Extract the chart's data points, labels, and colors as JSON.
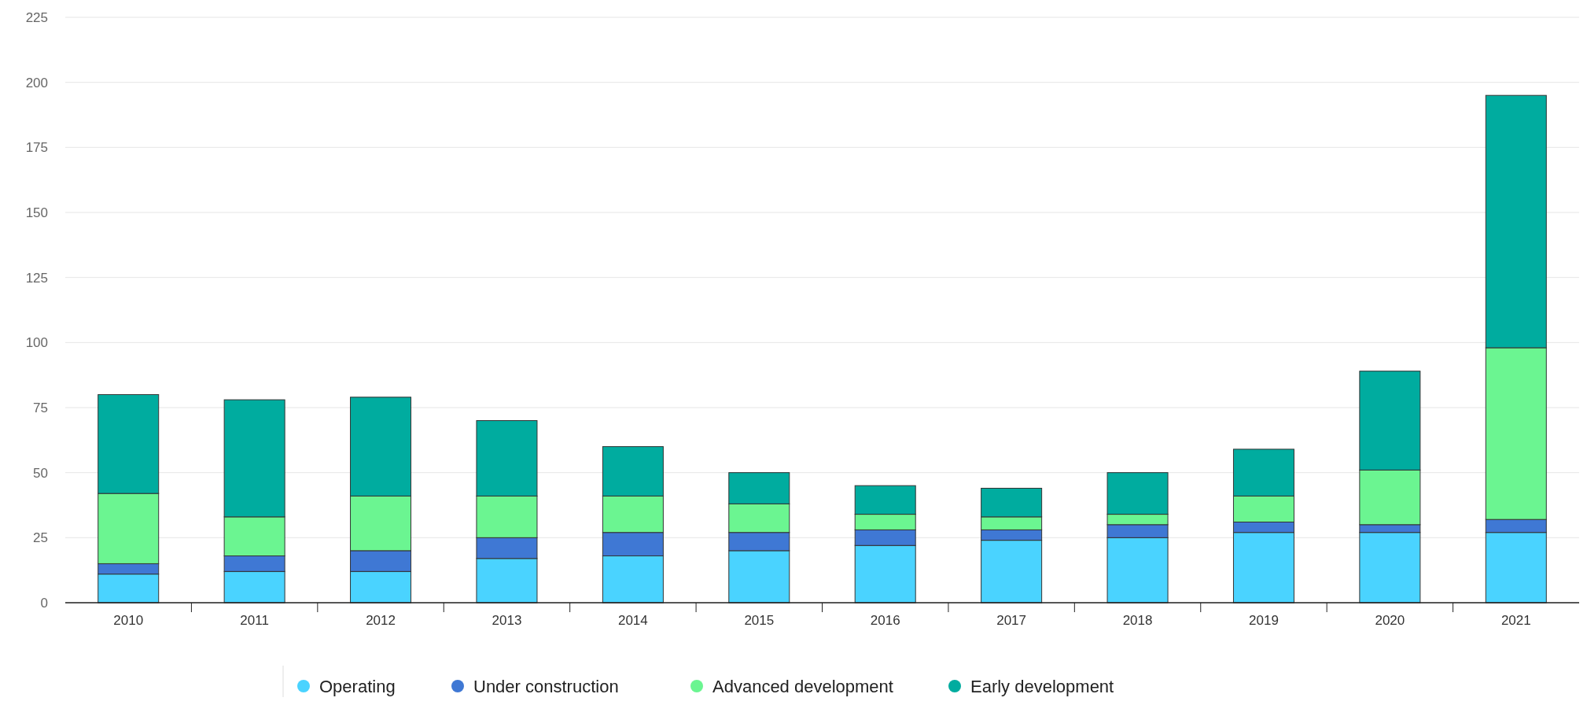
{
  "chart_data": {
    "type": "bar",
    "stacked": true,
    "categories": [
      "2010",
      "2011",
      "2012",
      "2013",
      "2014",
      "2015",
      "2016",
      "2017",
      "2018",
      "2019",
      "2020",
      "2021"
    ],
    "series": [
      {
        "name": "Operating",
        "color": "#4ad3ff",
        "values": [
          11,
          12,
          12,
          17,
          18,
          20,
          22,
          24,
          25,
          27,
          27,
          27
        ]
      },
      {
        "name": "Under construction",
        "color": "#3f78d4",
        "values": [
          4,
          6,
          8,
          8,
          9,
          7,
          6,
          4,
          5,
          4,
          3,
          5
        ]
      },
      {
        "name": "Advanced development",
        "color": "#6bf591",
        "values": [
          27,
          15,
          21,
          16,
          14,
          11,
          6,
          5,
          4,
          10,
          21,
          66
        ]
      },
      {
        "name": "Early development",
        "color": "#00ac9f",
        "values": [
          38,
          45,
          38,
          29,
          19,
          12,
          11,
          11,
          16,
          18,
          38,
          97
        ]
      }
    ],
    "ylim": [
      0,
      225
    ],
    "yticks": [
      0,
      25,
      50,
      75,
      100,
      125,
      150,
      175,
      200,
      225
    ],
    "grid": "y",
    "legend": "bottom"
  }
}
